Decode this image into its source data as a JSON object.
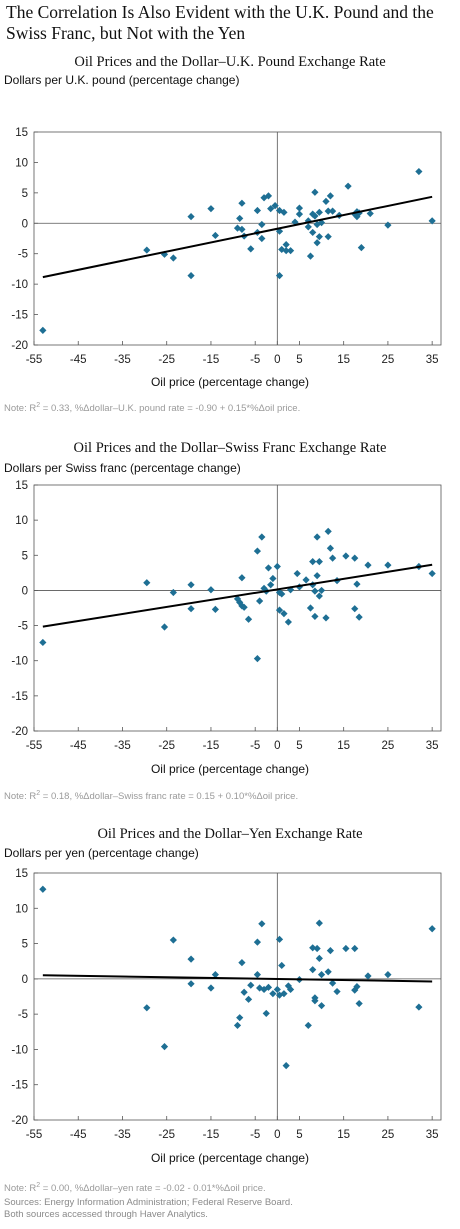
{
  "page": {
    "title": "The Correlation Is Also Evident with the U.K. Pound and the Swiss Franc, but Not with the Yen",
    "sources": "Sources: Energy Information Administration; Federal Reserve Board. Both sources accessed through Haver Analytics."
  },
  "charts": [
    {
      "title": "Oil Prices and the Dollar–U.K. Pound Exchange Rate",
      "ylabel": "Dollars per U.K. pound (percentage change)",
      "xlabel": "Oil price (percentage change)",
      "note_prefix": "Note: R",
      "note_sup": "2",
      "note_rest": " = 0.33, %Δdollar–U.K. pound rate =  -0.90 + 0.15*%Δoil price."
    },
    {
      "title": "Oil Prices and the Dollar–Swiss Franc Exchange Rate",
      "ylabel": "Dollars per Swiss franc (percentage change)",
      "xlabel": "Oil price (percentage change)",
      "note_prefix": "Note: R",
      "note_sup": "2",
      "note_rest": " = 0.18, %Δdollar–Swiss franc rate = 0.15 + 0.10*%Δoil price."
    },
    {
      "title": "Oil Prices and the Dollar–Yen Exchange Rate",
      "ylabel": "Dollars per yen (percentage change)",
      "xlabel": "Oil price (percentage change)",
      "note_prefix": "Note: R",
      "note_sup": "2",
      "note_rest": " = 0.00, %Δdollar–yen rate = -0.02 - 0.01*%Δoil price."
    }
  ],
  "chart_data": [
    {
      "type": "scatter",
      "title": "Oil Prices and the Dollar–U.K. Pound Exchange Rate",
      "xlabel": "Oil price (percentage change)",
      "ylabel": "Dollars per U.K. pound (percentage change)",
      "xlim": [
        -55,
        37
      ],
      "ylim": [
        -20,
        15
      ],
      "xticks": [
        -55,
        -45,
        -35,
        -25,
        -15,
        -5,
        0,
        5,
        15,
        25,
        35
      ],
      "yticks": [
        15,
        10,
        5,
        0,
        -5,
        -10,
        -15,
        -20
      ],
      "marker_color": "#1e6f94",
      "grid": false,
      "fit_line": {
        "intercept": -0.9,
        "slope": 0.15
      },
      "points": [
        [
          -53,
          -17.6
        ],
        [
          -29.5,
          -4.4
        ],
        [
          -25.5,
          -5.1
        ],
        [
          -23.5,
          -5.7
        ],
        [
          -19.5,
          1.1
        ],
        [
          -19.5,
          -8.6
        ],
        [
          -15,
          2.4
        ],
        [
          -14,
          -2.0
        ],
        [
          -9,
          -0.8
        ],
        [
          -8.5,
          0.8
        ],
        [
          -8,
          3.3
        ],
        [
          -8,
          -1.0
        ],
        [
          -7.5,
          -2.1
        ],
        [
          -6,
          -4.2
        ],
        [
          -4.5,
          2.1
        ],
        [
          -4.5,
          -1.5
        ],
        [
          -3.5,
          -2.5
        ],
        [
          -3.5,
          -0.2
        ],
        [
          -3,
          4.2
        ],
        [
          -2,
          4.5
        ],
        [
          -1.5,
          2.4
        ],
        [
          -0.5,
          2.9
        ],
        [
          0.5,
          2.1
        ],
        [
          0.5,
          -1.3
        ],
        [
          0.5,
          -8.6
        ],
        [
          1,
          -4.3
        ],
        [
          1.5,
          1.8
        ],
        [
          2,
          -3.5
        ],
        [
          2,
          -4.5
        ],
        [
          3,
          -4.5
        ],
        [
          4,
          0.2
        ],
        [
          5,
          2.5
        ],
        [
          5,
          1.5
        ],
        [
          7,
          0.4
        ],
        [
          7,
          -0.6
        ],
        [
          7.5,
          -5.4
        ],
        [
          8,
          1.5
        ],
        [
          8,
          -1.5
        ],
        [
          8.5,
          5.1
        ],
        [
          8.5,
          1.2
        ],
        [
          9,
          -0.2
        ],
        [
          9,
          -3.2
        ],
        [
          9.5,
          1.8
        ],
        [
          9.5,
          -2.2
        ],
        [
          10,
          0.1
        ],
        [
          11,
          3.6
        ],
        [
          11.5,
          -2.2
        ],
        [
          11.5,
          2.0
        ],
        [
          12,
          4.5
        ],
        [
          12.5,
          2.0
        ],
        [
          14,
          1.3
        ],
        [
          16,
          6.1
        ],
        [
          17.5,
          1.5
        ],
        [
          18,
          1.1
        ],
        [
          18,
          1.9
        ],
        [
          18.5,
          1.7
        ],
        [
          19,
          -4.0
        ],
        [
          21,
          1.6
        ],
        [
          25,
          -0.3
        ],
        [
          32,
          8.5
        ],
        [
          35,
          0.4
        ]
      ]
    },
    {
      "type": "scatter",
      "title": "Oil Prices and the Dollar–Swiss Franc Exchange Rate",
      "xlabel": "Oil price (percentage change)",
      "ylabel": "Dollars per Swiss franc (percentage change)",
      "xlim": [
        -55,
        37
      ],
      "ylim": [
        -20,
        15
      ],
      "xticks": [
        -55,
        -45,
        -35,
        -25,
        -15,
        -5,
        0,
        5,
        15,
        25,
        35
      ],
      "yticks": [
        15,
        10,
        5,
        0,
        -5,
        -10,
        -15,
        -20
      ],
      "marker_color": "#1e6f94",
      "grid": false,
      "fit_line": {
        "intercept": 0.15,
        "slope": 0.1
      },
      "points": [
        [
          -53,
          -7.4
        ],
        [
          -29.5,
          1.1
        ],
        [
          -25.5,
          -5.2
        ],
        [
          -23.5,
          -0.3
        ],
        [
          -19.5,
          0.8
        ],
        [
          -19.5,
          -2.6
        ],
        [
          -15,
          0.1
        ],
        [
          -14,
          -2.7
        ],
        [
          -9,
          -1.2
        ],
        [
          -8.5,
          -1.7
        ],
        [
          -8,
          1.8
        ],
        [
          -8,
          -2.2
        ],
        [
          -7.5,
          -2.4
        ],
        [
          -6.5,
          -4.1
        ],
        [
          -4.5,
          5.6
        ],
        [
          -4.5,
          -9.7
        ],
        [
          -4,
          -1.5
        ],
        [
          -3.5,
          7.6
        ],
        [
          -3,
          0.3
        ],
        [
          -2.5,
          -0.1
        ],
        [
          -2,
          3.2
        ],
        [
          -1.5,
          0.8
        ],
        [
          -1,
          1.7
        ],
        [
          0,
          3.4
        ],
        [
          0.5,
          -0.3
        ],
        [
          0.5,
          -2.8
        ],
        [
          1,
          -0.5
        ],
        [
          1.5,
          -3.3
        ],
        [
          2.5,
          -4.5
        ],
        [
          3,
          0.1
        ],
        [
          4.5,
          2.4
        ],
        [
          5,
          0.5
        ],
        [
          6.5,
          1.5
        ],
        [
          7.5,
          -2.5
        ],
        [
          8,
          4.1
        ],
        [
          8,
          0.8
        ],
        [
          8.5,
          -0.1
        ],
        [
          8.5,
          -3.7
        ],
        [
          9,
          7.6
        ],
        [
          9,
          2.1
        ],
        [
          9.5,
          4.1
        ],
        [
          9.5,
          -0.8
        ],
        [
          10,
          0.0
        ],
        [
          11,
          -3.9
        ],
        [
          11.5,
          8.4
        ],
        [
          12,
          6.0
        ],
        [
          12.5,
          4.6
        ],
        [
          13.5,
          1.4
        ],
        [
          15.5,
          4.9
        ],
        [
          17.5,
          4.6
        ],
        [
          17.5,
          -2.6
        ],
        [
          18,
          0.9
        ],
        [
          18.5,
          -3.8
        ],
        [
          20.5,
          3.6
        ],
        [
          25,
          3.6
        ],
        [
          32,
          3.4
        ],
        [
          35,
          2.4
        ]
      ]
    },
    {
      "type": "scatter",
      "title": "Oil Prices and the Dollar–Yen Exchange Rate",
      "xlabel": "Oil price (percentage change)",
      "ylabel": "Dollars per yen (percentage change)",
      "xlim": [
        -55,
        37
      ],
      "ylim": [
        -20,
        15
      ],
      "xticks": [
        -55,
        -45,
        -35,
        -25,
        -15,
        -5,
        0,
        5,
        15,
        25,
        35
      ],
      "yticks": [
        15,
        10,
        5,
        0,
        -5,
        -10,
        -15,
        -20
      ],
      "marker_color": "#1e6f94",
      "grid": false,
      "fit_line": {
        "intercept": -0.02,
        "slope": -0.01
      },
      "points": [
        [
          -53,
          12.7
        ],
        [
          -29.5,
          -4.1
        ],
        [
          -25.5,
          -9.6
        ],
        [
          -23.5,
          5.5
        ],
        [
          -19.5,
          2.8
        ],
        [
          -19.5,
          -0.7
        ],
        [
          -15,
          -1.3
        ],
        [
          -14,
          0.6
        ],
        [
          -9,
          -6.6
        ],
        [
          -8.5,
          -5.5
        ],
        [
          -8,
          2.3
        ],
        [
          -7.5,
          -1.9
        ],
        [
          -6.5,
          -2.9
        ],
        [
          -6,
          -0.9
        ],
        [
          -4.5,
          5.2
        ],
        [
          -4.5,
          0.6
        ],
        [
          -4,
          -1.3
        ],
        [
          -3.5,
          7.8
        ],
        [
          -3,
          -1.5
        ],
        [
          -2.5,
          -4.9
        ],
        [
          -2,
          -1.2
        ],
        [
          -1,
          -2.1
        ],
        [
          0,
          -1.5
        ],
        [
          0.5,
          5.6
        ],
        [
          0.5,
          -2.3
        ],
        [
          1,
          1.9
        ],
        [
          1.5,
          -2.1
        ],
        [
          2,
          -12.3
        ],
        [
          2.5,
          -1.0
        ],
        [
          3,
          -1.5
        ],
        [
          5,
          -0.1
        ],
        [
          7,
          -6.6
        ],
        [
          8,
          4.4
        ],
        [
          8,
          1.3
        ],
        [
          8.5,
          -2.7
        ],
        [
          8.5,
          -3.1
        ],
        [
          9,
          4.3
        ],
        [
          9.5,
          2.9
        ],
        [
          9.5,
          7.9
        ],
        [
          10,
          0.6
        ],
        [
          10,
          -3.8
        ],
        [
          11.5,
          1.0
        ],
        [
          12,
          4.0
        ],
        [
          12.5,
          -0.6
        ],
        [
          13.5,
          -1.8
        ],
        [
          15.5,
          4.3
        ],
        [
          17.5,
          4.3
        ],
        [
          17.5,
          -1.6
        ],
        [
          18,
          -1.1
        ],
        [
          18.5,
          -3.5
        ],
        [
          20.5,
          0.4
        ],
        [
          25,
          0.6
        ],
        [
          32,
          -4.0
        ],
        [
          35,
          7.1
        ]
      ]
    }
  ]
}
